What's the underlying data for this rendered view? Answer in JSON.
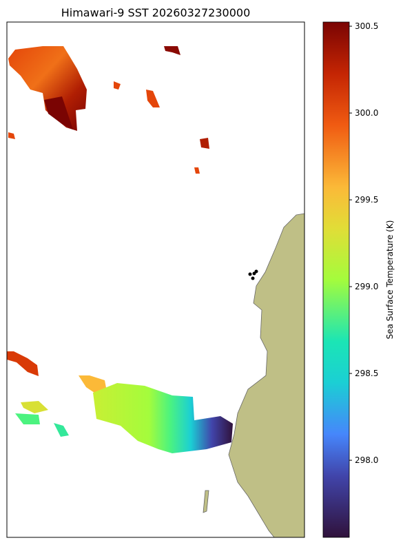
{
  "title": "Himawari-9 SST 20260327230000",
  "colorbar": {
    "label": "Sea Surface Temperature (K)",
    "lim": [
      297.556,
      300.524
    ],
    "ticks": [
      {
        "value": 298.0,
        "label": "298.0"
      },
      {
        "value": 298.5,
        "label": "298.5"
      },
      {
        "value": 299.0,
        "label": "299.0"
      },
      {
        "value": 299.5,
        "label": "299.5"
      },
      {
        "value": 300.0,
        "label": "300.0"
      },
      300.5
    ]
  }
}
